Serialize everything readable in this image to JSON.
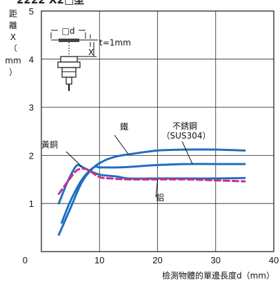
{
  "chart_data": {
    "type": "line",
    "title_partial": "2222 X2□型",
    "xlabel": "檢測物體的單邊長度d（mm）",
    "ylabel_chars": [
      "距",
      "離",
      "X",
      "（",
      "mm",
      "）"
    ],
    "xlim": [
      0,
      40
    ],
    "ylim": [
      0,
      5
    ],
    "x_ticks": [
      0,
      10,
      20,
      30,
      40
    ],
    "y_ticks": [
      1,
      2,
      3,
      4,
      5
    ],
    "grid": true,
    "inset": {
      "d_label": "□d",
      "x_label": "X",
      "t_label": "t=1mm"
    },
    "series": [
      {
        "name": "鐵",
        "color": "#1e6fbf",
        "dash": false,
        "x": [
          3,
          5,
          7,
          9,
          11,
          13,
          15,
          20,
          25,
          30,
          35
        ],
        "y": [
          0.35,
          0.9,
          1.45,
          1.75,
          1.9,
          1.98,
          2.02,
          2.1,
          2.12,
          2.12,
          2.1
        ]
      },
      {
        "name": "不銹鋼（SUS304）",
        "color": "#1e6fbf",
        "dash": false,
        "x": [
          3.5,
          5,
          7,
          9,
          10,
          11,
          13,
          15,
          20,
          25,
          30,
          35
        ],
        "y": [
          0.6,
          1.05,
          1.5,
          1.75,
          1.75,
          1.75,
          1.75,
          1.76,
          1.8,
          1.82,
          1.82,
          1.82
        ]
      },
      {
        "name": "黃銅",
        "color": "#1e6fbf",
        "dash": false,
        "x": [
          3,
          4.5,
          6,
          7,
          8,
          10,
          13,
          15,
          20,
          25,
          30,
          35
        ],
        "y": [
          1.0,
          1.45,
          1.78,
          1.76,
          1.7,
          1.6,
          1.56,
          1.52,
          1.52,
          1.52,
          1.52,
          1.53
        ]
      },
      {
        "name": "鋁",
        "color": "#d6288a",
        "dash": true,
        "x": [
          3,
          4.5,
          6,
          7,
          8,
          10,
          12,
          15,
          20,
          25,
          30,
          35
        ],
        "y": [
          1.2,
          1.45,
          1.68,
          1.72,
          1.7,
          1.55,
          1.52,
          1.5,
          1.5,
          1.5,
          1.48,
          1.46
        ]
      }
    ],
    "annotations": [
      {
        "text": "鐵",
        "target_series": 0,
        "at_x": 15
      },
      {
        "text": "不銹鋼",
        "sub": "（SUS304）",
        "target_series": 1,
        "at_x": 26
      },
      {
        "text": "黃銅",
        "target_series": 2,
        "at_x": 7
      },
      {
        "text": "鋁",
        "target_series": 3,
        "at_x": 20
      }
    ]
  }
}
